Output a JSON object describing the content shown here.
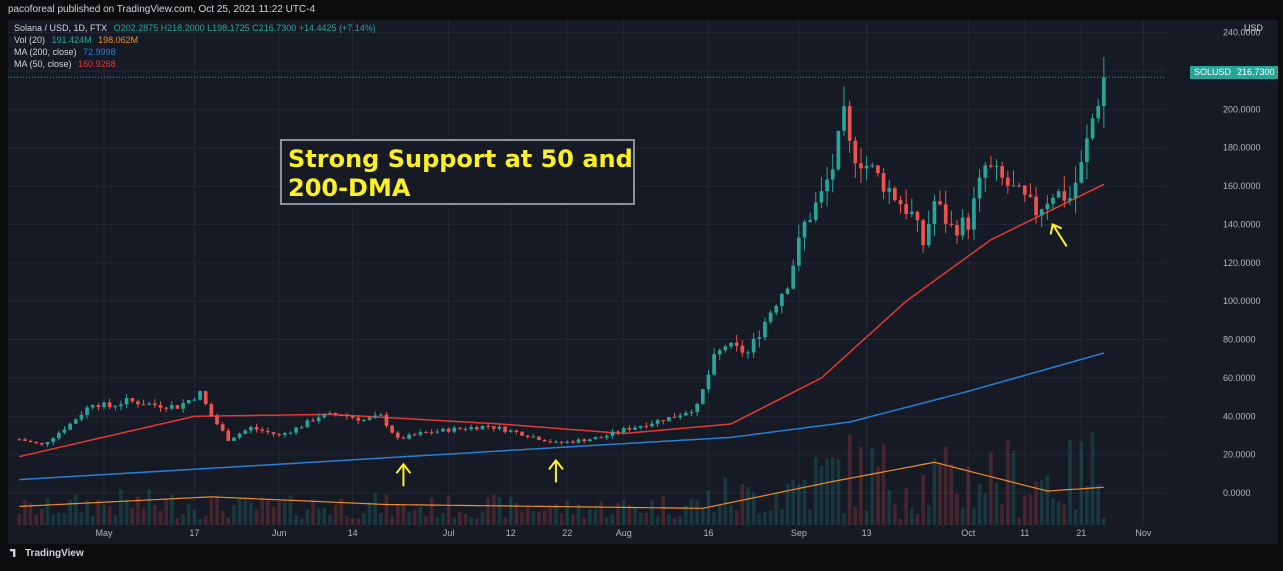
{
  "header": {
    "published_line": "pacoforeal published on TradingView.com, Oct 25, 2021 11:22 UTC-4"
  },
  "legend": {
    "symbol": "Solana / USD, 1D, FTX",
    "ohlc": "O202.2875 H218.2000 L198.1725 C216.7300 +14.4425 (+7.14%)",
    "vol_label": "Vol (20)",
    "vol_value1": "191.424M",
    "vol_value2": "198.062M",
    "ma200_label": "MA (200, close)",
    "ma200_value": "72.9998",
    "ma50_label": "MA (50, close)",
    "ma50_value": "160.9268"
  },
  "annotation": {
    "text": "Strong Support at 50 and\n200-DMA"
  },
  "price_badge": {
    "symbol": "SOLUSD",
    "price": "216.7300"
  },
  "footer": {
    "logo_text": "TradingView"
  },
  "colors": {
    "background": "#161a25",
    "up": "#26a69a",
    "down": "#ef5350",
    "ma200": "#2a7fd4",
    "ma50": "#e53935",
    "volume_ma": "#f08c2e",
    "annotation": "#fbf026",
    "axis_text": "#b2b5be"
  },
  "chart_data": {
    "type": "candlestick",
    "title": "Solana / USD, 1D, FTX",
    "ylabel": "USD",
    "ylim": [
      -10,
      240
    ],
    "y_ticks": [
      0,
      20,
      40,
      60,
      80,
      100,
      120,
      140,
      160,
      180,
      200,
      220,
      240
    ],
    "y_tick_labels": [
      "0.0000",
      "20.0000",
      "40.0000",
      "60.0000",
      "80.0000",
      "100.0000",
      "120.0000",
      "140.0000",
      "160.0000",
      "180.0000",
      "200.0000",
      "220.0000",
      "240.0000"
    ],
    "x_ticks": [
      {
        "label": "May",
        "date": "2021-05-01"
      },
      {
        "label": "17",
        "date": "2021-05-17"
      },
      {
        "label": "Jun",
        "date": "2021-06-01"
      },
      {
        "label": "14",
        "date": "2021-06-14"
      },
      {
        "label": "Jul",
        "date": "2021-07-01"
      },
      {
        "label": "12",
        "date": "2021-07-12"
      },
      {
        "label": "22",
        "date": "2021-07-22"
      },
      {
        "label": "Aug",
        "date": "2021-08-01"
      },
      {
        "label": "16",
        "date": "2021-08-16"
      },
      {
        "label": "Sep",
        "date": "2021-09-01"
      },
      {
        "label": "13",
        "date": "2021-09-13"
      },
      {
        "label": "Oct",
        "date": "2021-10-01"
      },
      {
        "label": "11",
        "date": "2021-10-11"
      },
      {
        "label": "21",
        "date": "2021-10-21"
      },
      {
        "label": "Nov",
        "date": "2021-11-01"
      }
    ],
    "price_keypoints": [
      {
        "date": "2021-04-16",
        "price": 28
      },
      {
        "date": "2021-04-20",
        "price": 25
      },
      {
        "date": "2021-04-25",
        "price": 36
      },
      {
        "date": "2021-04-29",
        "price": 47
      },
      {
        "date": "2021-05-02",
        "price": 45
      },
      {
        "date": "2021-05-05",
        "price": 48
      },
      {
        "date": "2021-05-10",
        "price": 46
      },
      {
        "date": "2021-05-14",
        "price": 45
      },
      {
        "date": "2021-05-18",
        "price": 52
      },
      {
        "date": "2021-05-20",
        "price": 40
      },
      {
        "date": "2021-05-23",
        "price": 28
      },
      {
        "date": "2021-05-27",
        "price": 34
      },
      {
        "date": "2021-06-01",
        "price": 30
      },
      {
        "date": "2021-06-05",
        "price": 35
      },
      {
        "date": "2021-06-08",
        "price": 40
      },
      {
        "date": "2021-06-12",
        "price": 41
      },
      {
        "date": "2021-06-16",
        "price": 38
      },
      {
        "date": "2021-06-19",
        "price": 40
      },
      {
        "date": "2021-06-22",
        "price": 28
      },
      {
        "date": "2021-06-26",
        "price": 31
      },
      {
        "date": "2021-07-01",
        "price": 33
      },
      {
        "date": "2021-07-08",
        "price": 35
      },
      {
        "date": "2021-07-14",
        "price": 31
      },
      {
        "date": "2021-07-20",
        "price": 26
      },
      {
        "date": "2021-07-23",
        "price": 27
      },
      {
        "date": "2021-07-28",
        "price": 29
      },
      {
        "date": "2021-08-01",
        "price": 33
      },
      {
        "date": "2021-08-05",
        "price": 36
      },
      {
        "date": "2021-08-10",
        "price": 40
      },
      {
        "date": "2021-08-14",
        "price": 45
      },
      {
        "date": "2021-08-17",
        "price": 70
      },
      {
        "date": "2021-08-19",
        "price": 77
      },
      {
        "date": "2021-08-21",
        "price": 75
      },
      {
        "date": "2021-08-23",
        "price": 73
      },
      {
        "date": "2021-08-27",
        "price": 95
      },
      {
        "date": "2021-08-30",
        "price": 110
      },
      {
        "date": "2021-09-02",
        "price": 140
      },
      {
        "date": "2021-09-05",
        "price": 155
      },
      {
        "date": "2021-09-07",
        "price": 170
      },
      {
        "date": "2021-09-09",
        "price": 195
      },
      {
        "date": "2021-09-10",
        "price": 180
      },
      {
        "date": "2021-09-14",
        "price": 168
      },
      {
        "date": "2021-09-18",
        "price": 155
      },
      {
        "date": "2021-09-21",
        "price": 145
      },
      {
        "date": "2021-09-23",
        "price": 130
      },
      {
        "date": "2021-09-25",
        "price": 152
      },
      {
        "date": "2021-09-28",
        "price": 138
      },
      {
        "date": "2021-10-01",
        "price": 141
      },
      {
        "date": "2021-10-04",
        "price": 170
      },
      {
        "date": "2021-10-07",
        "price": 163
      },
      {
        "date": "2021-10-10",
        "price": 155
      },
      {
        "date": "2021-10-13",
        "price": 147
      },
      {
        "date": "2021-10-16",
        "price": 157
      },
      {
        "date": "2021-10-19",
        "price": 154
      },
      {
        "date": "2021-10-21",
        "price": 170
      },
      {
        "date": "2021-10-23",
        "price": 195
      },
      {
        "date": "2021-10-25",
        "price": 216.73
      }
    ],
    "ma50": [
      {
        "date": "2021-04-16",
        "value": 19
      },
      {
        "date": "2021-05-17",
        "value": 40
      },
      {
        "date": "2021-06-10",
        "value": 41
      },
      {
        "date": "2021-07-10",
        "value": 36
      },
      {
        "date": "2021-08-01",
        "value": 31
      },
      {
        "date": "2021-08-20",
        "value": 36
      },
      {
        "date": "2021-09-05",
        "value": 60
      },
      {
        "date": "2021-09-20",
        "value": 100
      },
      {
        "date": "2021-10-05",
        "value": 132
      },
      {
        "date": "2021-10-25",
        "value": 160.9268
      }
    ],
    "ma200": [
      {
        "date": "2021-04-16",
        "value": 7
      },
      {
        "date": "2021-06-01",
        "value": 15
      },
      {
        "date": "2021-07-22",
        "value": 24
      },
      {
        "date": "2021-08-20",
        "value": 29
      },
      {
        "date": "2021-09-10",
        "value": 37
      },
      {
        "date": "2021-10-01",
        "value": 53
      },
      {
        "date": "2021-10-25",
        "value": 72.9998
      }
    ],
    "volume_ma": [
      {
        "date": "2021-04-16",
        "value": -7
      },
      {
        "date": "2021-05-20",
        "value": -2
      },
      {
        "date": "2021-06-20",
        "value": -6
      },
      {
        "date": "2021-08-15",
        "value": -8
      },
      {
        "date": "2021-09-07",
        "value": 6
      },
      {
        "date": "2021-09-25",
        "value": 16
      },
      {
        "date": "2021-10-15",
        "value": 1
      },
      {
        "date": "2021-10-25",
        "value": 3
      }
    ],
    "support_arrows": [
      {
        "date": "2021-06-23",
        "price": 15
      },
      {
        "date": "2021-07-20",
        "price": 17
      },
      {
        "date": "2021-10-17",
        "price": 140
      }
    ],
    "last_price": 216.73,
    "grid": true,
    "legend_position": "top-left"
  }
}
